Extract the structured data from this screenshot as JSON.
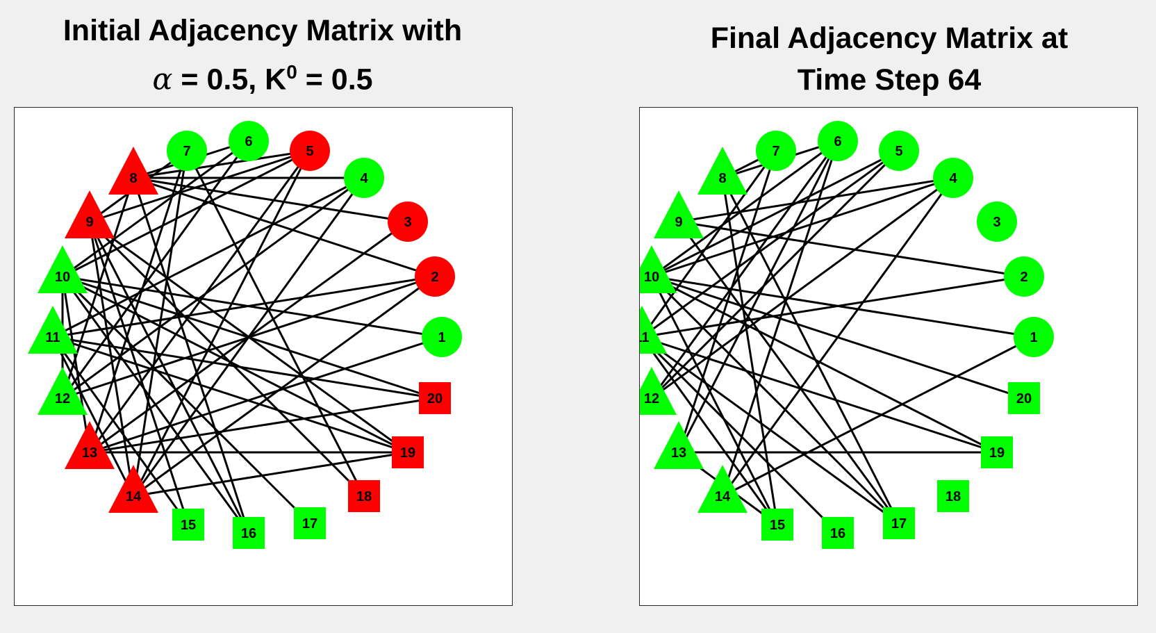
{
  "figure": {
    "left_title": {
      "line1": "Initial Adjacency Matrix with",
      "alpha_symbol": "α",
      "line2_rest": " = 0.5, K",
      "superscript": "0",
      "line2_end": " = 0.5"
    },
    "right_title": {
      "line1": "Final Adjacency Matrix at",
      "line2": "Time Step 64"
    }
  },
  "colors": {
    "red": "#ff0000",
    "green": "#00ff00",
    "edge": "#000000"
  },
  "chart_data": [
    {
      "type": "network",
      "nodes": [
        {
          "id": 1,
          "shape": "circle",
          "color": "green"
        },
        {
          "id": 2,
          "shape": "circle",
          "color": "red"
        },
        {
          "id": 3,
          "shape": "circle",
          "color": "red"
        },
        {
          "id": 4,
          "shape": "circle",
          "color": "green"
        },
        {
          "id": 5,
          "shape": "circle",
          "color": "red"
        },
        {
          "id": 6,
          "shape": "circle",
          "color": "green"
        },
        {
          "id": 7,
          "shape": "circle",
          "color": "green"
        },
        {
          "id": 8,
          "shape": "triangle",
          "color": "red"
        },
        {
          "id": 9,
          "shape": "triangle",
          "color": "red"
        },
        {
          "id": 10,
          "shape": "triangle",
          "color": "green"
        },
        {
          "id": 11,
          "shape": "triangle",
          "color": "green"
        },
        {
          "id": 12,
          "shape": "triangle",
          "color": "green"
        },
        {
          "id": 13,
          "shape": "triangle",
          "color": "red"
        },
        {
          "id": 14,
          "shape": "triangle",
          "color": "red"
        },
        {
          "id": 15,
          "shape": "square",
          "color": "green"
        },
        {
          "id": 16,
          "shape": "square",
          "color": "green"
        },
        {
          "id": 17,
          "shape": "square",
          "color": "green"
        },
        {
          "id": 18,
          "shape": "square",
          "color": "red"
        },
        {
          "id": 19,
          "shape": "square",
          "color": "red"
        },
        {
          "id": 20,
          "shape": "square",
          "color": "red"
        }
      ],
      "edges": [
        [
          8,
          6
        ],
        [
          8,
          5
        ],
        [
          8,
          4
        ],
        [
          8,
          3
        ],
        [
          8,
          2
        ],
        [
          8,
          12
        ],
        [
          9,
          7
        ],
        [
          9,
          5
        ],
        [
          9,
          14
        ],
        [
          9,
          15
        ],
        [
          9,
          16
        ],
        [
          9,
          18
        ],
        [
          9,
          19
        ],
        [
          10,
          5
        ],
        [
          10,
          6
        ],
        [
          10,
          1
        ],
        [
          10,
          12
        ],
        [
          10,
          13
        ],
        [
          10,
          16
        ],
        [
          10,
          17
        ],
        [
          10,
          19
        ],
        [
          10,
          20
        ],
        [
          11,
          4
        ],
        [
          11,
          2
        ],
        [
          11,
          14
        ],
        [
          11,
          15
        ],
        [
          11,
          19
        ],
        [
          11,
          20
        ],
        [
          12,
          6
        ],
        [
          12,
          4
        ],
        [
          12,
          2
        ],
        [
          13,
          7
        ],
        [
          13,
          5
        ],
        [
          13,
          3
        ],
        [
          13,
          1
        ],
        [
          13,
          20
        ],
        [
          13,
          19
        ],
        [
          14,
          7
        ],
        [
          14,
          5
        ],
        [
          14,
          4
        ],
        [
          14,
          2
        ],
        [
          14,
          19
        ],
        [
          16,
          8
        ],
        [
          18,
          7
        ]
      ]
    },
    {
      "type": "network",
      "nodes": [
        {
          "id": 1,
          "shape": "circle",
          "color": "green"
        },
        {
          "id": 2,
          "shape": "circle",
          "color": "green"
        },
        {
          "id": 3,
          "shape": "circle",
          "color": "green"
        },
        {
          "id": 4,
          "shape": "circle",
          "color": "green"
        },
        {
          "id": 5,
          "shape": "circle",
          "color": "green"
        },
        {
          "id": 6,
          "shape": "circle",
          "color": "green"
        },
        {
          "id": 7,
          "shape": "circle",
          "color": "green"
        },
        {
          "id": 8,
          "shape": "triangle",
          "color": "green"
        },
        {
          "id": 9,
          "shape": "triangle",
          "color": "green"
        },
        {
          "id": 10,
          "shape": "triangle",
          "color": "green"
        },
        {
          "id": 11,
          "shape": "triangle",
          "color": "green"
        },
        {
          "id": 12,
          "shape": "triangle",
          "color": "green"
        },
        {
          "id": 13,
          "shape": "triangle",
          "color": "green"
        },
        {
          "id": 14,
          "shape": "triangle",
          "color": "green"
        },
        {
          "id": 15,
          "shape": "square",
          "color": "green"
        },
        {
          "id": 16,
          "shape": "square",
          "color": "green"
        },
        {
          "id": 17,
          "shape": "square",
          "color": "green"
        },
        {
          "id": 18,
          "shape": "square",
          "color": "green"
        },
        {
          "id": 19,
          "shape": "square",
          "color": "green"
        },
        {
          "id": 20,
          "shape": "square",
          "color": "green"
        }
      ],
      "edges": [
        [
          8,
          6
        ],
        [
          8,
          7
        ],
        [
          8,
          15
        ],
        [
          8,
          17
        ],
        [
          9,
          4
        ],
        [
          9,
          2
        ],
        [
          9,
          17
        ],
        [
          10,
          6
        ],
        [
          10,
          5
        ],
        [
          10,
          4
        ],
        [
          10,
          1
        ],
        [
          10,
          15
        ],
        [
          10,
          17
        ],
        [
          10,
          19
        ],
        [
          10,
          20
        ],
        [
          11,
          7
        ],
        [
          11,
          5
        ],
        [
          11,
          2
        ],
        [
          11,
          15
        ],
        [
          11,
          16
        ],
        [
          11,
          17
        ],
        [
          11,
          19
        ],
        [
          12,
          6
        ],
        [
          12,
          5
        ],
        [
          12,
          4
        ],
        [
          13,
          7
        ],
        [
          13,
          6
        ],
        [
          13,
          19
        ],
        [
          13,
          15
        ],
        [
          14,
          4
        ],
        [
          14,
          6
        ],
        [
          14,
          1
        ]
      ]
    }
  ]
}
